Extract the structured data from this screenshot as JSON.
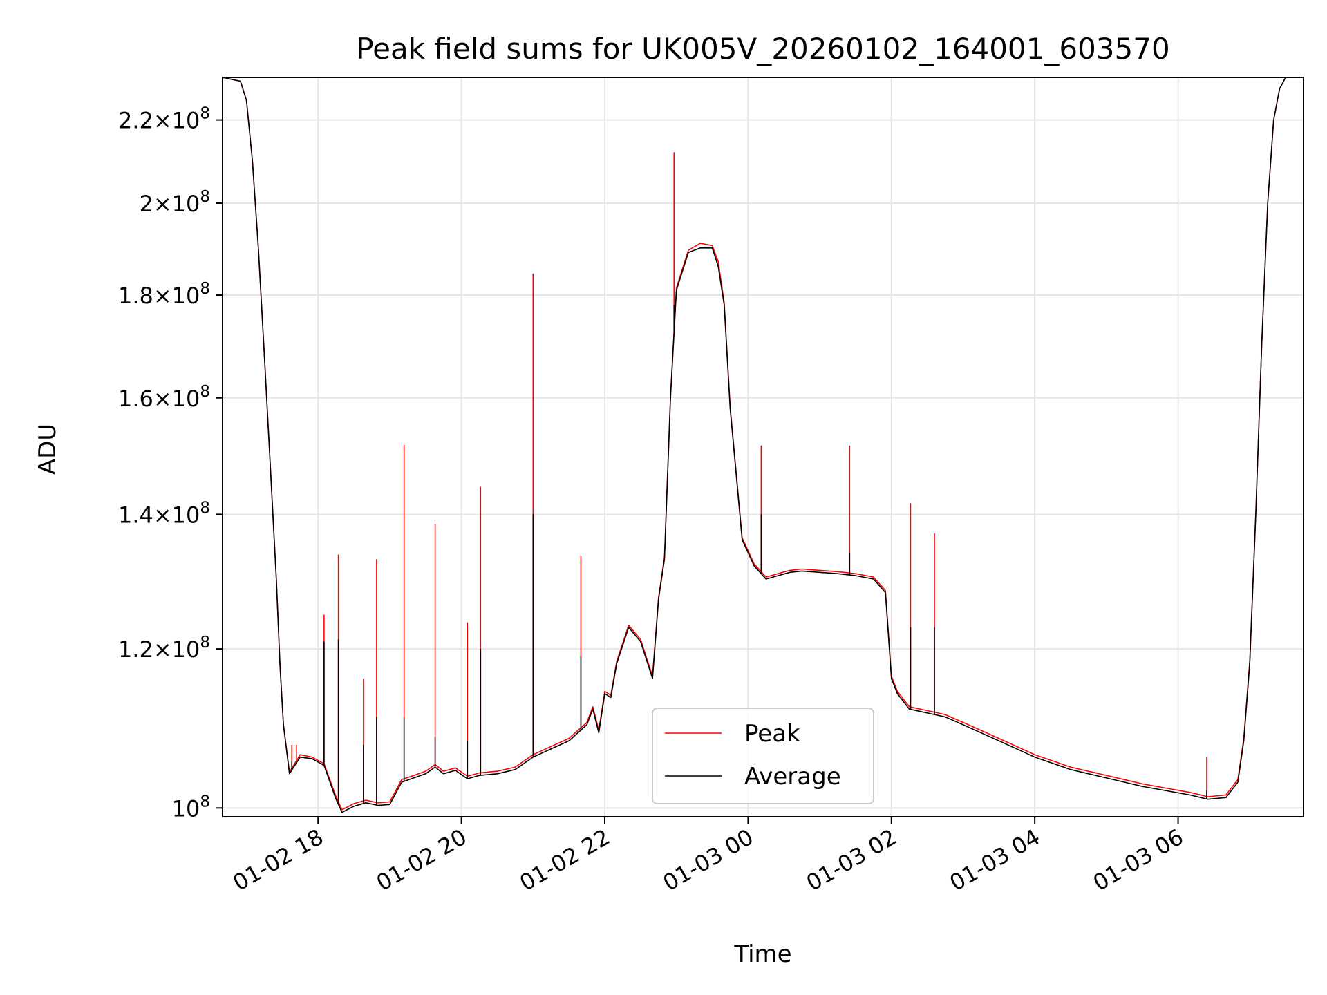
{
  "chart_data": {
    "type": "line",
    "title": "Peak field sums for UK005V_20260102_164001_603570",
    "xlabel": "Time",
    "ylabel": "ADU",
    "y_scale": "log",
    "xlim": [
      "2026-01-02 16:40",
      "2026-01-03 07:45"
    ],
    "ylim": [
      99000000,
      231000000
    ],
    "grid": true,
    "legend_position": "lower center",
    "x_ticks": [
      {
        "value": "2026-01-02 18:00",
        "label": "01-02 18"
      },
      {
        "value": "2026-01-02 20:00",
        "label": "01-02 20"
      },
      {
        "value": "2026-01-02 22:00",
        "label": "01-02 22"
      },
      {
        "value": "2026-01-03 00:00",
        "label": "01-03 00"
      },
      {
        "value": "2026-01-03 02:00",
        "label": "01-03 02"
      },
      {
        "value": "2026-01-03 04:00",
        "label": "01-03 04"
      },
      {
        "value": "2026-01-03 06:00",
        "label": "01-03 06"
      }
    ],
    "y_ticks": [
      {
        "value": 100000000,
        "mant": "",
        "exp": "8"
      },
      {
        "value": 120000000,
        "mant": "1.2",
        "exp": "8"
      },
      {
        "value": 140000000,
        "mant": "1.4",
        "exp": "8"
      },
      {
        "value": 160000000,
        "mant": "1.6",
        "exp": "8"
      },
      {
        "value": 180000000,
        "mant": "1.8",
        "exp": "8"
      },
      {
        "value": 200000000,
        "mant": "2",
        "exp": "8"
      },
      {
        "value": 220000000,
        "mant": "2.2",
        "exp": "8"
      }
    ],
    "series": [
      {
        "name": "Average",
        "color": "#000000",
        "x": [
          "2026-01-02 16:40",
          "2026-01-02 16:55",
          "2026-01-02 17:00",
          "2026-01-02 17:05",
          "2026-01-02 17:10",
          "2026-01-02 17:15",
          "2026-01-02 17:20",
          "2026-01-02 17:25",
          "2026-01-02 17:28",
          "2026-01-02 17:31",
          "2026-01-02 17:36",
          "2026-01-02 17:45",
          "2026-01-02 17:55",
          "2026-01-02 18:05",
          "2026-01-02 18:15",
          "2026-01-02 18:20",
          "2026-01-02 18:30",
          "2026-01-02 18:40",
          "2026-01-02 18:50",
          "2026-01-02 19:00",
          "2026-01-02 19:10",
          "2026-01-02 19:20",
          "2026-01-02 19:30",
          "2026-01-02 19:38",
          "2026-01-02 19:45",
          "2026-01-02 19:55",
          "2026-01-02 20:05",
          "2026-01-02 20:15",
          "2026-01-02 20:30",
          "2026-01-02 20:45",
          "2026-01-02 21:00",
          "2026-01-02 21:15",
          "2026-01-02 21:30",
          "2026-01-02 21:45",
          "2026-01-02 21:50",
          "2026-01-02 21:55",
          "2026-01-02 22:00",
          "2026-01-02 22:05",
          "2026-01-02 22:10",
          "2026-01-02 22:20",
          "2026-01-02 22:30",
          "2026-01-02 22:40",
          "2026-01-02 22:45",
          "2026-01-02 22:50",
          "2026-01-02 22:55",
          "2026-01-02 23:00",
          "2026-01-02 23:10",
          "2026-01-02 23:20",
          "2026-01-02 23:30",
          "2026-01-02 23:35",
          "2026-01-02 23:40",
          "2026-01-02 23:45",
          "2026-01-02 23:55",
          "2026-01-03 00:05",
          "2026-01-03 00:15",
          "2026-01-03 00:25",
          "2026-01-03 00:35",
          "2026-01-03 00:45",
          "2026-01-03 01:00",
          "2026-01-03 01:15",
          "2026-01-03 01:30",
          "2026-01-03 01:45",
          "2026-01-03 01:55",
          "2026-01-03 02:00",
          "2026-01-03 02:05",
          "2026-01-03 02:15",
          "2026-01-03 02:30",
          "2026-01-03 02:45",
          "2026-01-03 03:00",
          "2026-01-03 03:30",
          "2026-01-03 04:00",
          "2026-01-03 04:30",
          "2026-01-03 05:00",
          "2026-01-03 05:30",
          "2026-01-03 05:50",
          "2026-01-03 06:10",
          "2026-01-03 06:25",
          "2026-01-03 06:40",
          "2026-01-03 06:50",
          "2026-01-03 06:55",
          "2026-01-03 07:00",
          "2026-01-03 07:05",
          "2026-01-03 07:10",
          "2026-01-03 07:15",
          "2026-01-03 07:20",
          "2026-01-03 07:25",
          "2026-01-03 07:30",
          "2026-01-03 07:35",
          "2026-01-03 07:45"
        ],
        "y": [
          231000000,
          230000000,
          225000000,
          210000000,
          190000000,
          168000000,
          148000000,
          130000000,
          118000000,
          110000000,
          104000000,
          106000000,
          105800000,
          105000000,
          101000000,
          99500000,
          100200000,
          100600000,
          100300000,
          100400000,
          103000000,
          103500000,
          104000000,
          104800000,
          104000000,
          104400000,
          103400000,
          103800000,
          104000000,
          104500000,
          106000000,
          107000000,
          108000000,
          110000000,
          112000000,
          109000000,
          114000000,
          113500000,
          118000000,
          123000000,
          121000000,
          116000000,
          127000000,
          133000000,
          160000000,
          181000000,
          189000000,
          190000000,
          190000000,
          186000000,
          178000000,
          158000000,
          136000000,
          132000000,
          130000000,
          130500000,
          131000000,
          131200000,
          131000000,
          130800000,
          130500000,
          130000000,
          128000000,
          116000000,
          114000000,
          112000000,
          111500000,
          111000000,
          110000000,
          108000000,
          106000000,
          104500000,
          103500000,
          102500000,
          102000000,
          101500000,
          101000000,
          101200000,
          103000000,
          108000000,
          118000000,
          140000000,
          170000000,
          200000000,
          220000000,
          228000000,
          231000000,
          231000000,
          231000000
        ]
      },
      {
        "name": "Peak",
        "color": "#ff0000",
        "x": [
          "2026-01-02 16:40",
          "2026-01-02 16:55",
          "2026-01-02 17:00",
          "2026-01-02 17:05",
          "2026-01-02 17:10",
          "2026-01-02 17:15",
          "2026-01-02 17:20",
          "2026-01-02 17:25",
          "2026-01-02 17:28",
          "2026-01-02 17:31",
          "2026-01-02 17:36",
          "2026-01-02 17:45",
          "2026-01-02 17:55",
          "2026-01-02 18:05",
          "2026-01-02 18:15",
          "2026-01-02 18:20",
          "2026-01-02 18:30",
          "2026-01-02 18:40",
          "2026-01-02 18:50",
          "2026-01-02 19:00",
          "2026-01-02 19:10",
          "2026-01-02 19:20",
          "2026-01-02 19:30",
          "2026-01-02 19:38",
          "2026-01-02 19:45",
          "2026-01-02 19:55",
          "2026-01-02 20:05",
          "2026-01-02 20:15",
          "2026-01-02 20:30",
          "2026-01-02 20:45",
          "2026-01-02 21:00",
          "2026-01-02 21:15",
          "2026-01-02 21:30",
          "2026-01-02 21:45",
          "2026-01-02 21:50",
          "2026-01-02 21:55",
          "2026-01-02 22:00",
          "2026-01-02 22:05",
          "2026-01-02 22:10",
          "2026-01-02 22:20",
          "2026-01-02 22:30",
          "2026-01-02 22:40",
          "2026-01-02 22:45",
          "2026-01-02 22:50",
          "2026-01-02 22:55",
          "2026-01-02 23:00",
          "2026-01-02 23:10",
          "2026-01-02 23:20",
          "2026-01-02 23:30",
          "2026-01-02 23:35",
          "2026-01-02 23:40",
          "2026-01-02 23:45",
          "2026-01-02 23:55",
          "2026-01-03 00:05",
          "2026-01-03 00:15",
          "2026-01-03 00:25",
          "2026-01-03 00:35",
          "2026-01-03 00:45",
          "2026-01-03 01:00",
          "2026-01-03 01:15",
          "2026-01-03 01:30",
          "2026-01-03 01:45",
          "2026-01-03 01:55",
          "2026-01-03 02:00",
          "2026-01-03 02:05",
          "2026-01-03 02:15",
          "2026-01-03 02:30",
          "2026-01-03 02:45",
          "2026-01-03 03:00",
          "2026-01-03 03:30",
          "2026-01-03 04:00",
          "2026-01-03 04:30",
          "2026-01-03 05:00",
          "2026-01-03 05:30",
          "2026-01-03 05:50",
          "2026-01-03 06:10",
          "2026-01-03 06:25",
          "2026-01-03 06:40",
          "2026-01-03 06:50",
          "2026-01-03 06:55",
          "2026-01-03 07:00",
          "2026-01-03 07:05",
          "2026-01-03 07:10",
          "2026-01-03 07:15",
          "2026-01-03 07:20",
          "2026-01-03 07:25",
          "2026-01-03 07:30",
          "2026-01-03 07:35",
          "2026-01-03 07:45"
        ],
        "y": [
          231000000,
          230000000,
          225000000,
          210000000,
          190000000,
          168000000,
          148000000,
          130000000,
          118000000,
          110000000,
          104200000,
          106300000,
          106000000,
          105200000,
          101300000,
          99800000,
          100500000,
          100900000,
          100600000,
          100700000,
          103300000,
          103800000,
          104300000,
          105100000,
          104300000,
          104700000,
          103700000,
          104100000,
          104300000,
          104800000,
          106300000,
          107300000,
          108300000,
          110300000,
          112300000,
          109300000,
          114300000,
          113800000,
          118300000,
          123300000,
          121300000,
          116300000,
          127300000,
          133300000,
          160300000,
          181500000,
          189500000,
          191000000,
          190500000,
          187000000,
          178500000,
          158300000,
          136300000,
          132300000,
          130300000,
          130800000,
          131300000,
          131500000,
          131300000,
          131100000,
          130800000,
          130300000,
          128300000,
          116300000,
          114300000,
          112300000,
          111800000,
          111300000,
          110300000,
          108300000,
          106300000,
          104800000,
          103800000,
          102800000,
          102300000,
          101800000,
          101300000,
          101500000,
          103300000,
          108300000,
          118300000,
          140000000,
          170000000,
          200000000,
          220000000,
          228000000,
          231000000,
          231000000,
          231000000
        ]
      }
    ],
    "spikes": {
      "time": [
        "2026-01-02 17:38",
        "2026-01-02 17:42",
        "2026-01-02 18:05",
        "2026-01-02 18:17",
        "2026-01-02 18:38",
        "2026-01-02 18:49",
        "2026-01-02 19:12",
        "2026-01-02 19:38",
        "2026-01-02 20:05",
        "2026-01-02 20:16",
        "2026-01-02 21:00",
        "2026-01-02 21:40",
        "2026-01-02 22:58",
        "2026-01-03 00:11",
        "2026-01-03 01:25",
        "2026-01-03 02:16",
        "2026-01-03 02:36",
        "2026-01-03 06:24"
      ],
      "peak": [
        107500000,
        107500000,
        124800000,
        133700000,
        116000000,
        133000000,
        151600000,
        138500000,
        123700000,
        144500000,
        184500000,
        133500000,
        212000000,
        151500000,
        151500000,
        141800000,
        137000000,
        106000000
      ],
      "average": [
        105500000,
        105500000,
        121000000,
        121300000,
        107500000,
        111000000,
        111000000,
        108500000,
        108000000,
        120000000,
        140000000,
        119000000,
        178000000,
        140000000,
        134000000,
        123000000,
        123000000,
        102000000
      ]
    }
  }
}
